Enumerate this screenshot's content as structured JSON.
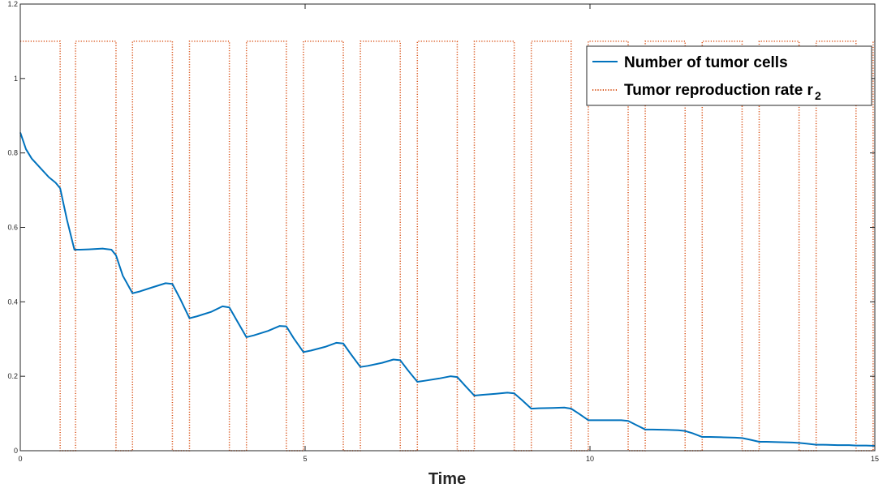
{
  "chart_data": {
    "type": "line",
    "title": "",
    "xlabel": "Time",
    "ylabel": "",
    "xlim": [
      0,
      15
    ],
    "ylim": [
      0,
      1.2
    ],
    "xticks": [
      "0",
      "5",
      "10",
      "15"
    ],
    "yticks": [
      "0",
      "0.2",
      "0.4",
      "0.6",
      "0.8",
      "1",
      "1.2"
    ],
    "grid": false,
    "legend_position": "top-right",
    "series": [
      {
        "name": "Number of tumor cells",
        "style": "solid",
        "color": "#0072BD",
        "x": [
          0,
          0.1,
          0.2,
          0.35,
          0.5,
          0.62,
          0.7,
          0.82,
          0.95,
          1.05,
          1.2,
          1.45,
          1.6,
          1.68,
          1.8,
          1.97,
          2.1,
          2.3,
          2.55,
          2.67,
          2.8,
          2.97,
          3.1,
          3.35,
          3.55,
          3.67,
          3.8,
          3.97,
          4.1,
          4.35,
          4.55,
          4.67,
          4.8,
          4.97,
          5.1,
          5.35,
          5.55,
          5.67,
          5.8,
          5.97,
          6.1,
          6.35,
          6.55,
          6.67,
          6.8,
          6.97,
          7.1,
          7.35,
          7.55,
          7.67,
          7.8,
          7.97,
          8.1,
          8.35,
          8.55,
          8.67,
          8.8,
          8.97,
          9.1,
          9.35,
          9.55,
          9.67,
          9.8,
          9.97,
          10.1,
          10.35,
          10.55,
          10.67,
          10.8,
          10.97,
          11.1,
          11.35,
          11.55,
          11.67,
          11.8,
          11.97,
          12.1,
          12.35,
          12.55,
          12.67,
          12.8,
          12.97,
          13.1,
          13.35,
          13.55,
          13.67,
          13.8,
          13.97,
          14.1,
          14.35,
          14.55,
          14.67,
          14.85,
          15
        ],
        "y": [
          0.855,
          0.81,
          0.785,
          0.76,
          0.735,
          0.72,
          0.705,
          0.62,
          0.54,
          0.54,
          0.541,
          0.543,
          0.54,
          0.525,
          0.47,
          0.423,
          0.428,
          0.438,
          0.45,
          0.448,
          0.41,
          0.356,
          0.361,
          0.373,
          0.388,
          0.385,
          0.35,
          0.305,
          0.31,
          0.322,
          0.335,
          0.334,
          0.302,
          0.265,
          0.269,
          0.279,
          0.29,
          0.288,
          0.26,
          0.225,
          0.228,
          0.236,
          0.245,
          0.243,
          0.217,
          0.185,
          0.188,
          0.194,
          0.2,
          0.198,
          0.176,
          0.148,
          0.15,
          0.153,
          0.156,
          0.154,
          0.137,
          0.113,
          0.114,
          0.115,
          0.116,
          0.113,
          0.1,
          0.082,
          0.082,
          0.082,
          0.082,
          0.08,
          0.07,
          0.057,
          0.057,
          0.056,
          0.055,
          0.053,
          0.047,
          0.037,
          0.037,
          0.036,
          0.035,
          0.034,
          0.03,
          0.024,
          0.024,
          0.023,
          0.022,
          0.021,
          0.019,
          0.016,
          0.016,
          0.015,
          0.015,
          0.014,
          0.014,
          0.013
        ]
      },
      {
        "name": "Tumor reproduction rate r",
        "name_subscript": "2",
        "style": "dotted",
        "color": "#D95319",
        "high": 1.1,
        "low": 0,
        "intervals_low": [
          [
            0.7,
            0.97
          ],
          [
            1.68,
            1.97
          ],
          [
            2.67,
            2.97
          ],
          [
            3.67,
            3.97
          ],
          [
            4.67,
            4.97
          ],
          [
            5.67,
            5.97
          ],
          [
            6.67,
            6.97
          ],
          [
            7.67,
            7.97
          ],
          [
            8.67,
            8.97
          ],
          [
            9.67,
            9.97
          ],
          [
            10.67,
            10.97
          ],
          [
            11.67,
            11.97
          ],
          [
            12.67,
            12.97
          ],
          [
            13.67,
            13.97
          ],
          [
            14.67,
            14.97
          ]
        ]
      }
    ]
  }
}
